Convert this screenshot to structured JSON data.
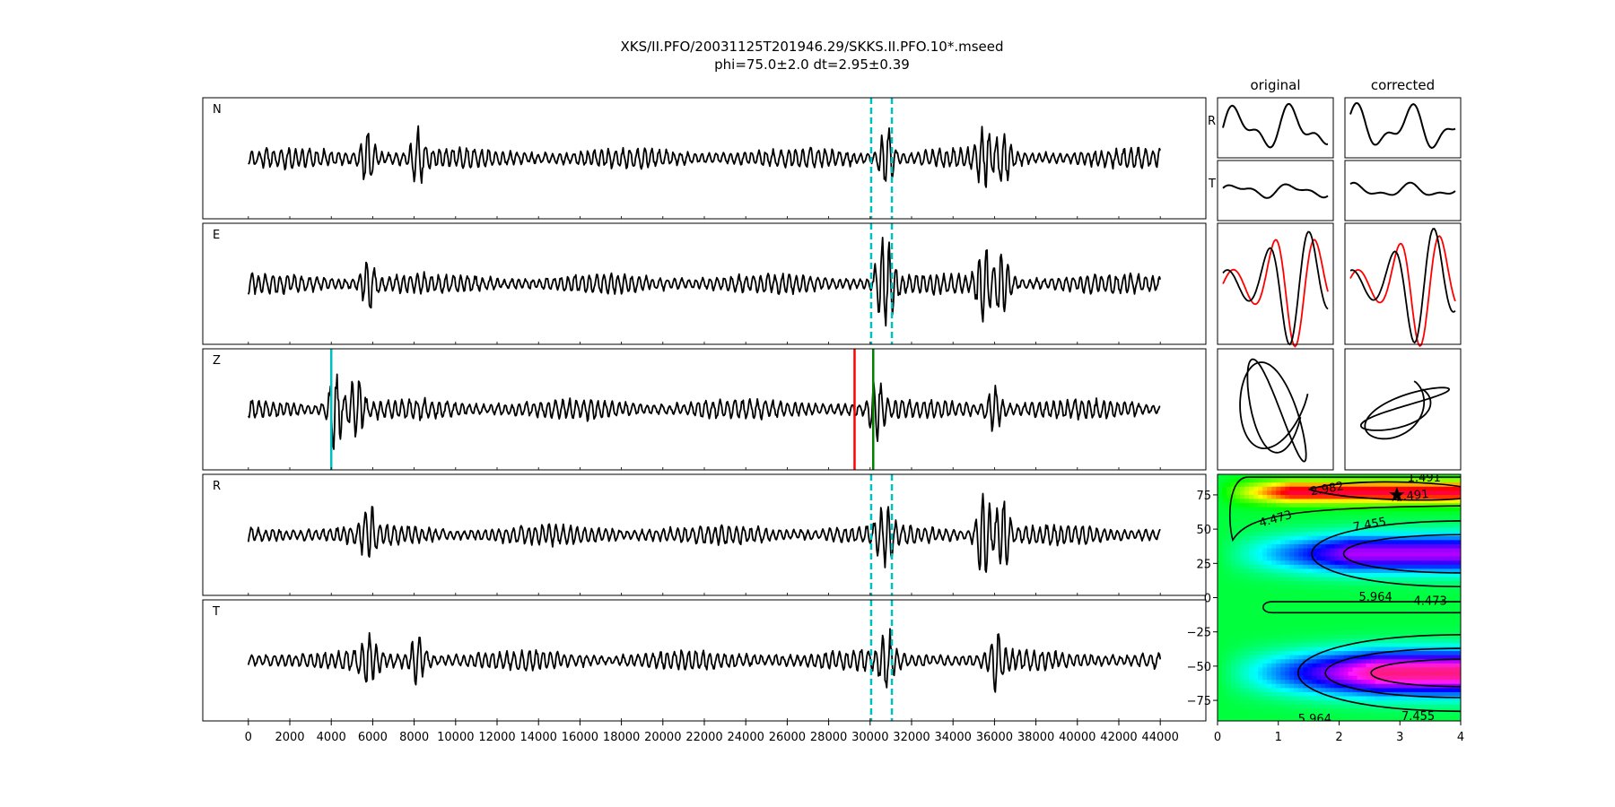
{
  "figure": {
    "title_line1": "XKS/II.PFO/20031125T201946.29/SKKS.II.PFO.10*.mseed",
    "title_line2": "phi=75.0±2.0 dt=2.95±0.39"
  },
  "chart_data": [
    {
      "type": "line",
      "name": "waveforms",
      "panels": [
        {
          "label": "N",
          "cursors": [
            {
              "x": 30050,
              "color": "#00bfbf",
              "style": "dashed"
            },
            {
              "x": 31050,
              "color": "#00bfbf",
              "style": "dashed"
            }
          ]
        },
        {
          "label": "E",
          "cursors": [
            {
              "x": 30050,
              "color": "#00bfbf",
              "style": "dashed"
            },
            {
              "x": 31050,
              "color": "#00bfbf",
              "style": "dashed"
            }
          ]
        },
        {
          "label": "Z",
          "cursors": [
            {
              "x": 4000,
              "color": "#00bfbf",
              "style": "solid"
            },
            {
              "x": 29250,
              "color": "#ff0000",
              "style": "solid"
            },
            {
              "x": 30150,
              "color": "#008000",
              "style": "solid"
            }
          ]
        },
        {
          "label": "R",
          "cursors": [
            {
              "x": 30050,
              "color": "#00bfbf",
              "style": "dashed"
            },
            {
              "x": 31050,
              "color": "#00bfbf",
              "style": "dashed"
            }
          ]
        },
        {
          "label": "T",
          "cursors": [
            {
              "x": 30050,
              "color": "#00bfbf",
              "style": "dashed"
            },
            {
              "x": 31050,
              "color": "#00bfbf",
              "style": "dashed"
            }
          ]
        }
      ],
      "x_range": [
        -2200,
        46200
      ],
      "x_ticks": [
        0,
        2000,
        4000,
        6000,
        8000,
        10000,
        12000,
        14000,
        16000,
        18000,
        20000,
        22000,
        24000,
        26000,
        28000,
        30000,
        32000,
        34000,
        36000,
        38000,
        40000,
        42000,
        44000
      ],
      "trace_x_range": [
        0,
        44000
      ]
    },
    {
      "type": "line",
      "name": "particle-motion",
      "columns": [
        "original",
        "corrected"
      ],
      "rows": [
        "R",
        "T",
        "",
        ""
      ],
      "colors": {
        "trace": "#000000",
        "second": "#ff0000"
      }
    },
    {
      "type": "heatmap",
      "name": "error-surface",
      "x_range": [
        0,
        4
      ],
      "y_range": [
        -90,
        90
      ],
      "x_ticks": [
        0,
        1,
        2,
        3,
        4
      ],
      "y_ticks": [
        75,
        50,
        25,
        0,
        -25,
        -50,
        -75
      ],
      "contour_labels": [
        "1.491",
        "2.982",
        "4.473",
        "7.455",
        "5.964",
        "4.473",
        "5.964",
        "7.455",
        "1.491"
      ],
      "best_fit": {
        "dt": 2.95,
        "phi": 75.0,
        "marker": "star"
      },
      "colormap": "gist_rainbow"
    }
  ]
}
